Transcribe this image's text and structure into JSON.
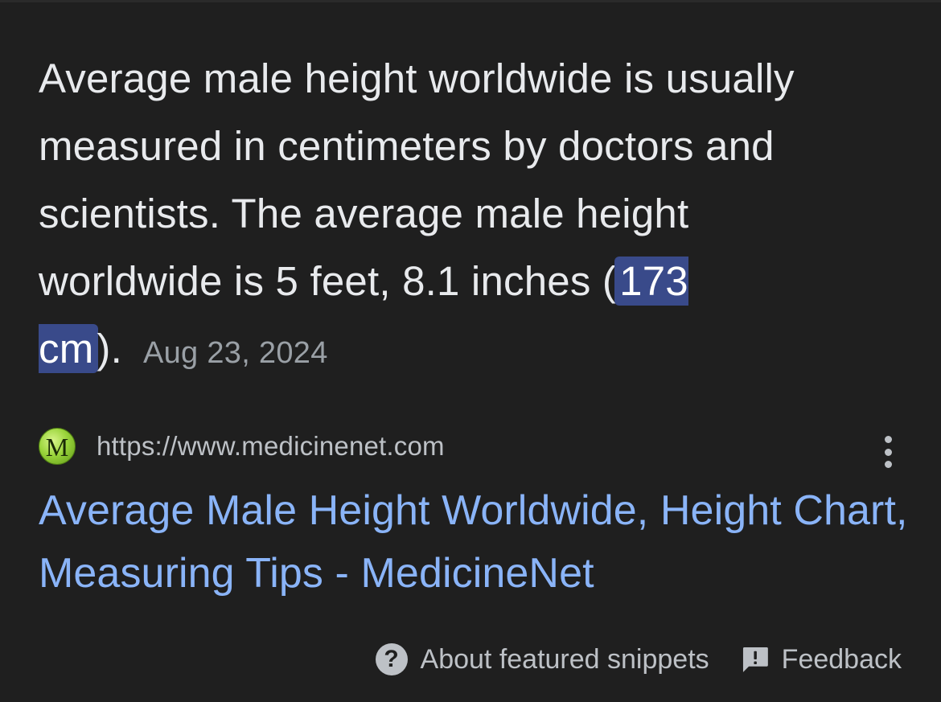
{
  "snippet": {
    "text_before": "Average male height worldwide is usually measured in centimeters by doctors and scientists. The average male height worldwide is 5 feet, 8.1 inches (",
    "highlight": "173 cm",
    "text_after": ").",
    "date": "Aug 23, 2024"
  },
  "source": {
    "favicon_letter": "M",
    "favicon_icon": "medicinenet-favicon",
    "url": "https://www.medicinenet.com",
    "more_icon": "vertical-dots-icon"
  },
  "result": {
    "title": "Average Male Height Worldwide, Height Chart, Measuring Tips - MedicineNet"
  },
  "footer": {
    "about_label": "About featured snippets",
    "about_icon": "help-icon",
    "feedback_label": "Feedback",
    "feedback_icon": "feedback-icon"
  },
  "colors": {
    "background": "#1f1f1f",
    "text": "#e8eaed",
    "link": "#8ab4f8",
    "highlight": "#394a8a",
    "muted": "#9aa0a6"
  }
}
